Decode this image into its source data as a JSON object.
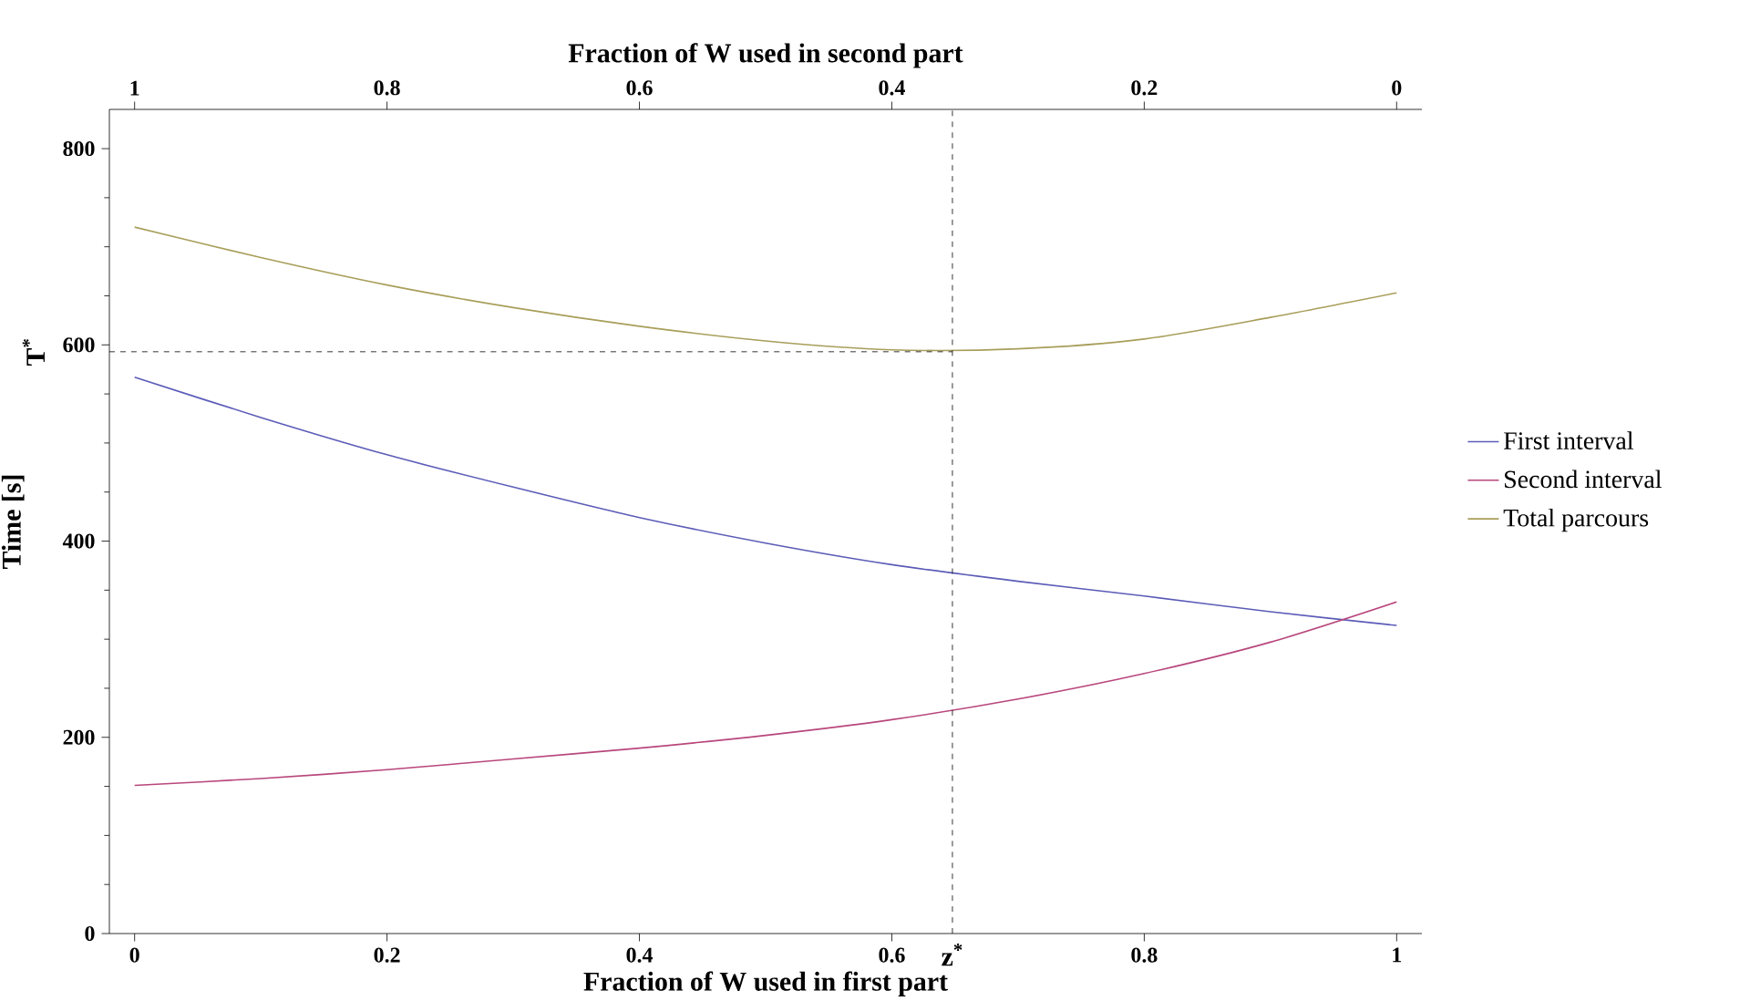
{
  "chart_data": {
    "type": "line",
    "xlabel": "Fraction of W used in first part",
    "x2label": "Fraction of W used in second part",
    "ylabel": "Time [s]",
    "x": [
      0,
      0.1,
      0.2,
      0.3,
      0.4,
      0.5,
      0.6,
      0.7,
      0.8,
      0.9,
      1
    ],
    "series": [
      {
        "name": "First interval",
        "color": "#5c5cb8",
        "values": [
          567,
          526,
          488,
          455,
          424,
          398,
          376,
          359,
          344,
          328,
          314
        ]
      },
      {
        "name": "Second interval",
        "color": "#b8467c",
        "values": [
          151,
          158,
          167,
          178,
          189,
          202,
          218,
          239,
          265,
          297,
          338
        ]
      },
      {
        "name": "Total parcours",
        "color": "#a89e5a",
        "values": [
          720,
          689,
          661,
          638,
          619,
          604,
          595,
          596,
          606,
          628,
          653
        ]
      }
    ],
    "xlim": [
      -0.02,
      1.02
    ],
    "ylim": [
      0,
      840
    ],
    "x2lim": [
      1.02,
      -0.02
    ],
    "xticks": [
      0,
      0.2,
      0.4,
      0.6,
      0.8,
      1
    ],
    "x2ticks": [
      1,
      0.8,
      0.6,
      0.4,
      0.2,
      0
    ],
    "yticks": [
      0,
      200,
      400,
      600,
      800
    ],
    "ref_lines": [
      {
        "axis": "y",
        "value": 593,
        "label": "T$^{*}$",
        "line_style": "dashed",
        "color": "#000000"
      },
      {
        "axis": "x",
        "value": 0.648,
        "label": "z$^{*}$",
        "line_style": "dashed",
        "color": "#000000"
      }
    ],
    "legend": "right",
    "grid": false,
    "marker": "none",
    "line_style": "solid"
  }
}
